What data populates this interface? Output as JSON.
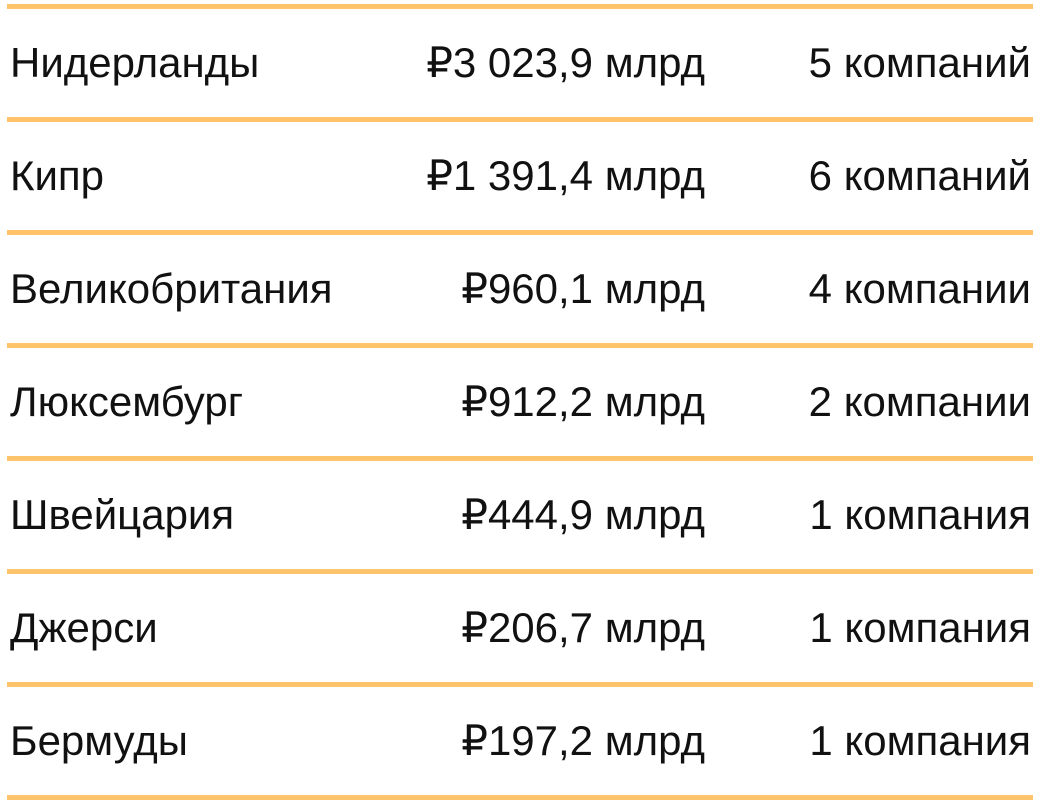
{
  "accent_color": "#FFC36B",
  "rows": [
    {
      "country": "Нидерланды",
      "amount": "₽3 023,9 млрд",
      "companies": "5 компаний"
    },
    {
      "country": "Кипр",
      "amount": "₽1 391,4 млрд",
      "companies": "6 компаний"
    },
    {
      "country": "Великобритания",
      "amount": "₽960,1 млрд",
      "companies": "4 компании"
    },
    {
      "country": "Люксембург",
      "amount": "₽912,2 млрд",
      "companies": "2 компании"
    },
    {
      "country": "Швейцария",
      "amount": "₽444,9 млрд",
      "companies": "1 компания"
    },
    {
      "country": "Джерси",
      "amount": "₽206,7 млрд",
      "companies": "1 компания"
    },
    {
      "country": "Бермуды",
      "amount": "₽197,2 млрд",
      "companies": "1 компания"
    }
  ]
}
